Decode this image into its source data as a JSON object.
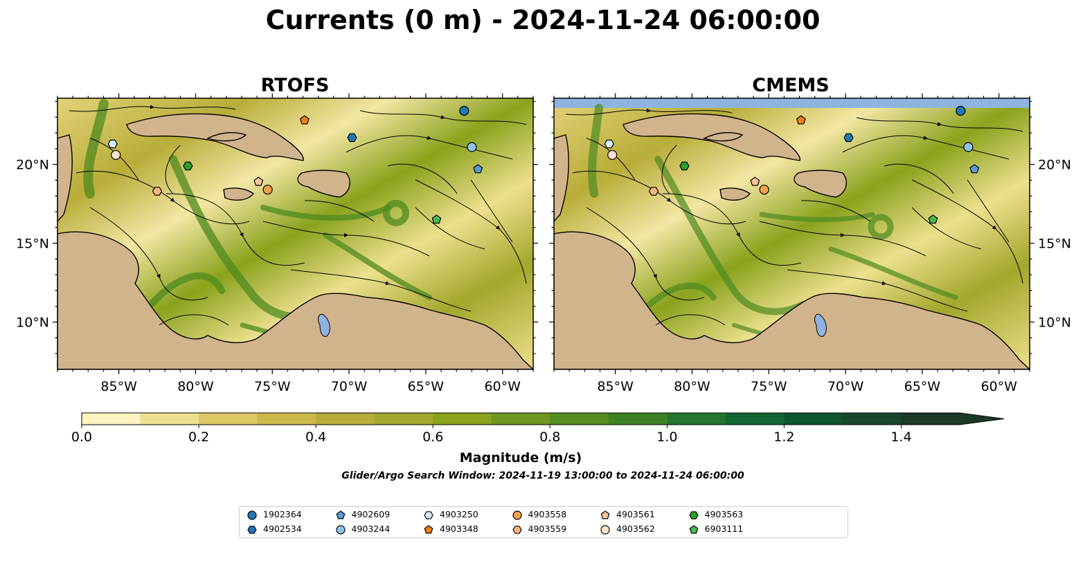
{
  "title": "Currents (0 m) - 2024-11-24 06:00:00",
  "panels": [
    {
      "title": "RTOFS",
      "model": "RTOFS"
    },
    {
      "title": "CMEMS",
      "model": "CMEMS"
    }
  ],
  "lon_ticks": [
    "85°W",
    "80°W",
    "75°W",
    "70°W",
    "65°W",
    "60°W"
  ],
  "lat_ticks": [
    "20°N",
    "15°N",
    "10°N"
  ],
  "extent": {
    "lon": [
      -89,
      -58
    ],
    "lat": [
      7,
      24.2
    ]
  },
  "colorbar": {
    "label": "Magnitude (m/s)",
    "ticks": [
      "0.0",
      "0.2",
      "0.4",
      "0.6",
      "0.8",
      "1.0",
      "1.2",
      "1.4"
    ],
    "range": [
      0,
      1.5
    ],
    "extend": "max",
    "colors": [
      "#fbf4c1",
      "#ede08e",
      "#dcc864",
      "#cdb94a",
      "#b8ad38",
      "#a3a72b",
      "#8aa21c",
      "#6f9620",
      "#568c20",
      "#3e8226",
      "#23752f",
      "#126634",
      "#0d5630",
      "#18472e",
      "#1c3a25"
    ]
  },
  "search_window": "Glider/Argo Search Window: 2024-11-19 13:00:00 to 2024-11-24 06:00:00",
  "colors": {
    "land": "#d2b48c",
    "ocean_fill": "#8fb3e0",
    "lake": "#8fb3e0",
    "river": "#9db8e0"
  },
  "floats": [
    {
      "id": "1902364",
      "marker": "circle",
      "color": "#1f77b4",
      "lon": -62.5,
      "lat": 23.4
    },
    {
      "id": "4902534",
      "marker": "hexagon",
      "color": "#1f77b4",
      "lon": -69.8,
      "lat": 21.7
    },
    {
      "id": "4902609",
      "marker": "pentagon",
      "color": "#5b9bd5",
      "lon": -61.6,
      "lat": 19.7
    },
    {
      "id": "4903244",
      "marker": "circle",
      "color": "#8ec3ea",
      "lon": -62.0,
      "lat": 21.1
    },
    {
      "id": "4903250",
      "marker": "hexagon",
      "color": "#d2ecfa",
      "lon": -85.4,
      "lat": 21.3
    },
    {
      "id": "4903348",
      "marker": "pentagon",
      "color": "#f07f13",
      "lon": -72.9,
      "lat": 22.8
    },
    {
      "id": "4903558",
      "marker": "circle",
      "color": "#f6a04d",
      "lon": -75.3,
      "lat": 18.4
    },
    {
      "id": "4903559",
      "marker": "hexagon",
      "color": "#f9b680",
      "lon": -82.5,
      "lat": 18.3
    },
    {
      "id": "4903561",
      "marker": "pentagon",
      "color": "#fbc59a",
      "lon": -75.9,
      "lat": 18.9
    },
    {
      "id": "4903562",
      "marker": "circle",
      "color": "#fde1cb",
      "lon": -85.2,
      "lat": 20.6
    },
    {
      "id": "4903563",
      "marker": "hexagon",
      "color": "#2ca02c",
      "lon": -80.5,
      "lat": 19.9
    },
    {
      "id": "6903111",
      "marker": "pentagon",
      "color": "#4bb84b",
      "lon": -64.3,
      "lat": 16.5
    }
  ]
}
